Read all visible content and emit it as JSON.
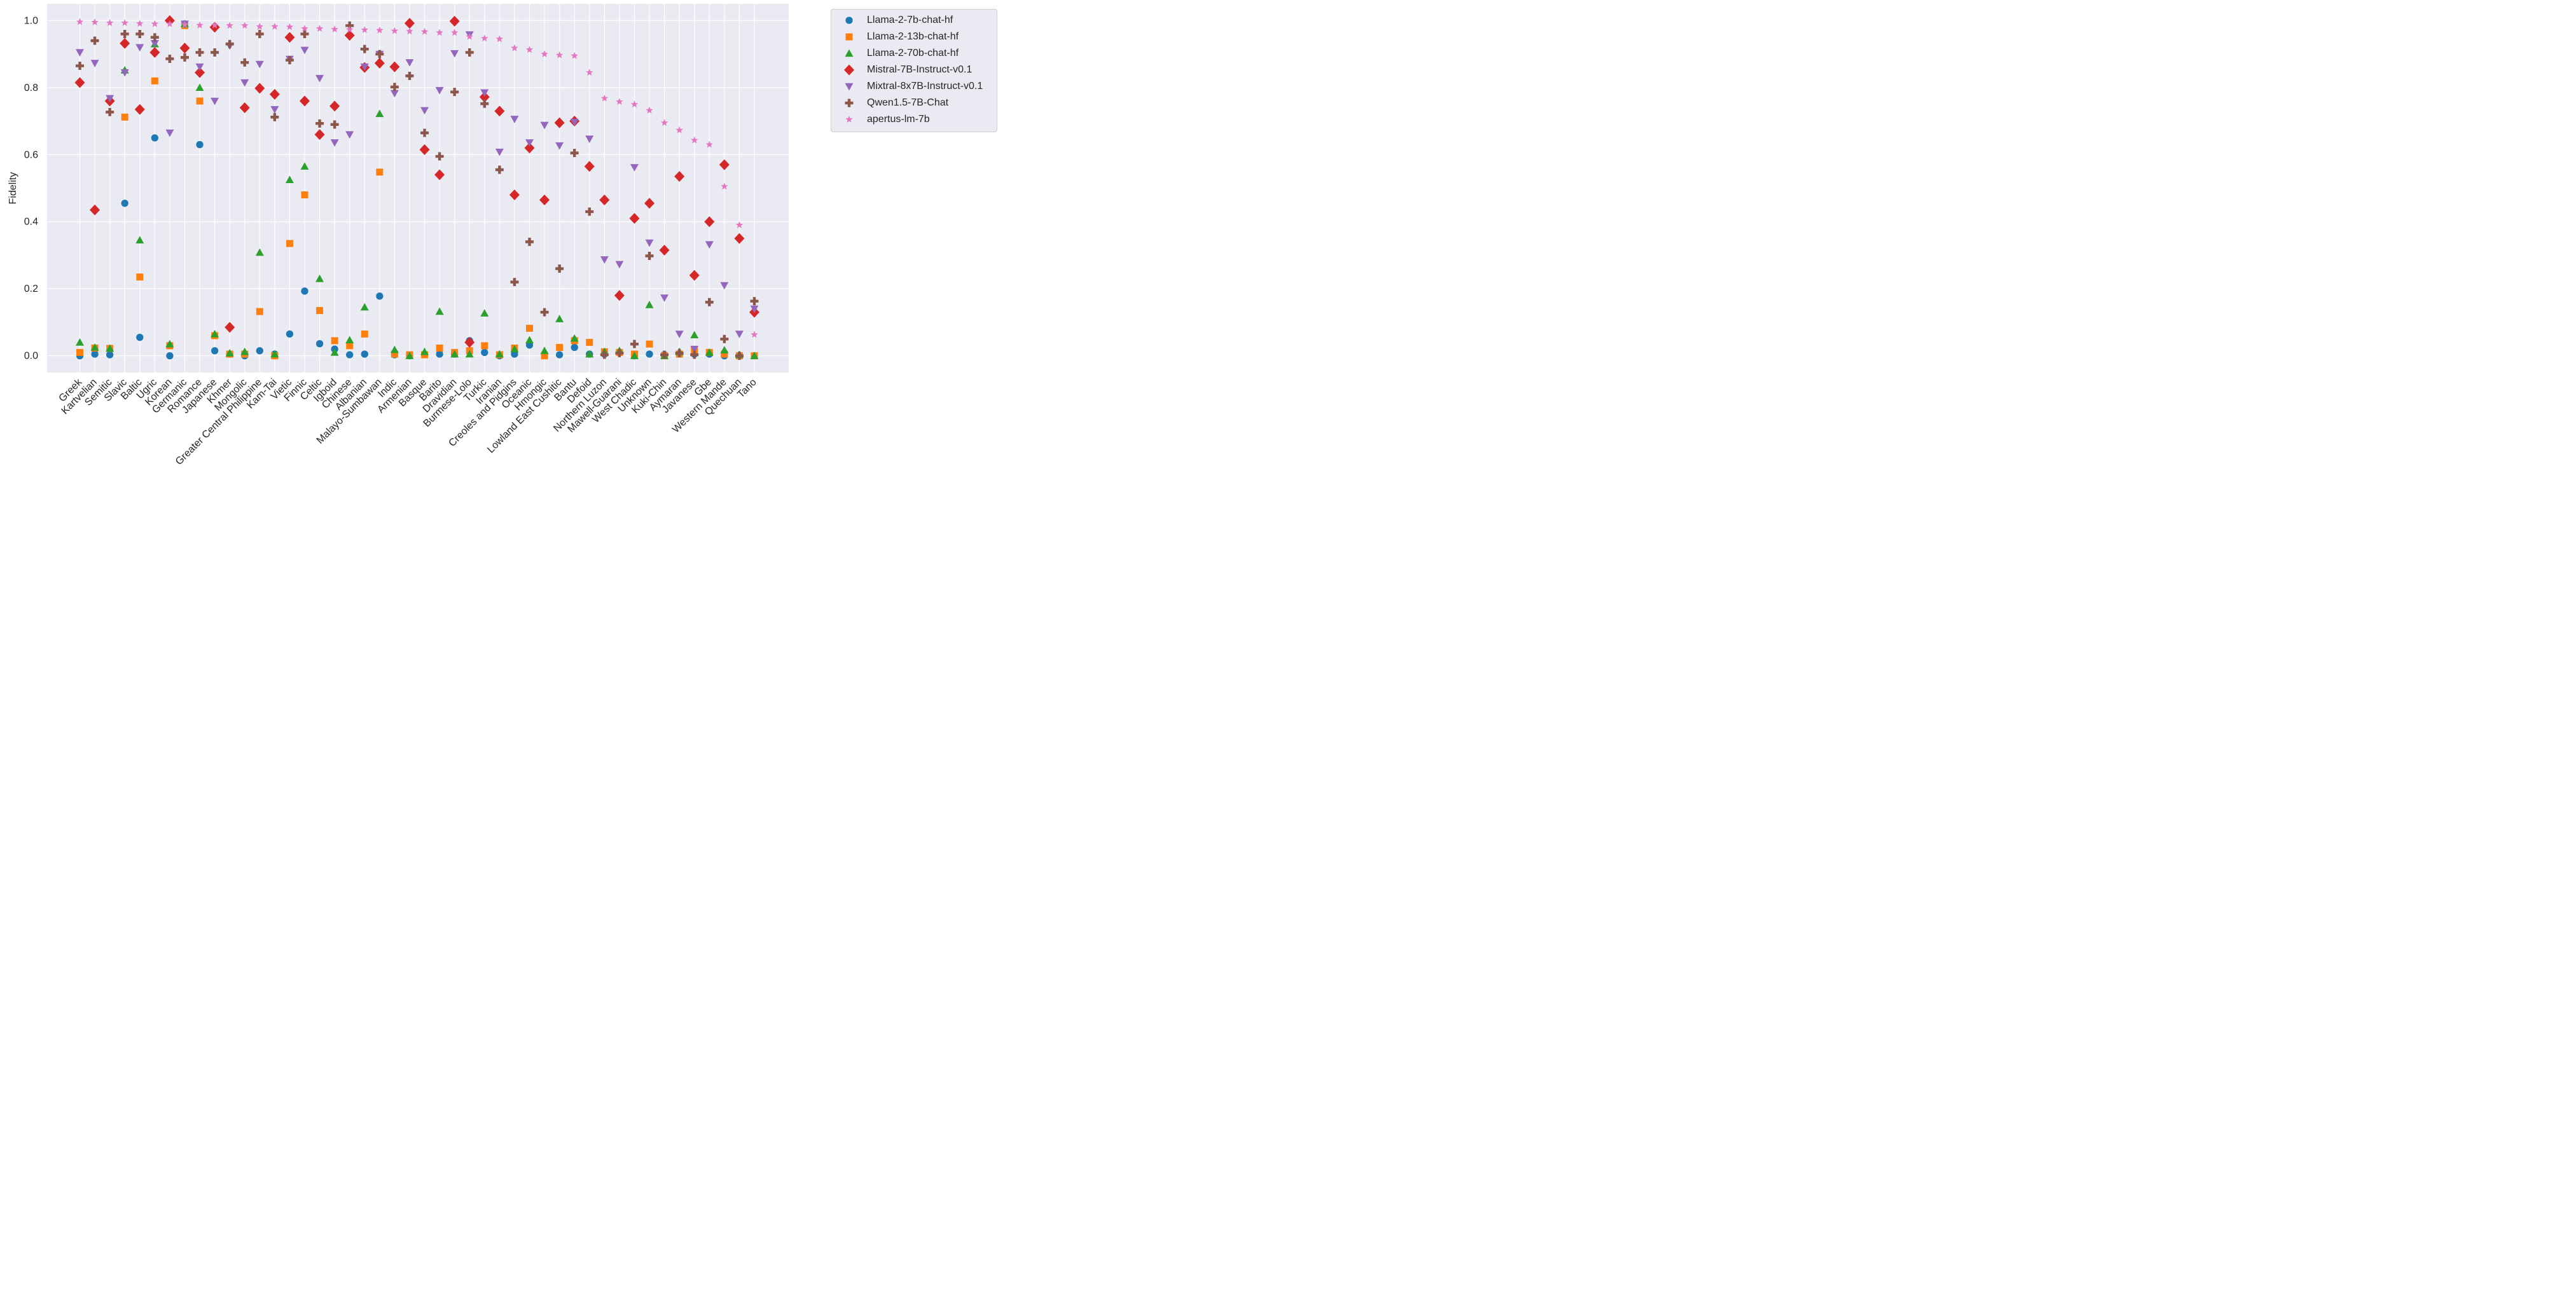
{
  "chart_data": {
    "type": "scatter",
    "title": "",
    "xlabel": "",
    "ylabel": "Fidelity",
    "ylim": [
      -0.05,
      1.05
    ],
    "yticks": [
      0.0,
      0.2,
      0.4,
      0.6,
      0.8,
      1.0
    ],
    "ytick_labels": [
      "0.0",
      "0.2",
      "0.4",
      "0.6",
      "0.8",
      "1.0"
    ],
    "grid": true,
    "legend_position": "outside-top-right",
    "categories": [
      "Greek",
      "Kartvelian",
      "Semitic",
      "Slavic",
      "Baltic",
      "Ugric",
      "Korean",
      "Germanic",
      "Romance",
      "Japanese",
      "Khmer",
      "Mongolic",
      "Greater Central Philippine",
      "Kam-Tai",
      "Vietic",
      "Finnic",
      "Celtic",
      "Igboid",
      "Chinese",
      "Albanian",
      "Malayo-Sumbawan",
      "Indic",
      "Armenian",
      "Basque",
      "Barito",
      "Dravidian",
      "Burmese-Lolo",
      "Turkic",
      "Iranian",
      "Creoles and Pidgins",
      "Oceanic",
      "Hmongic",
      "Lowland East Cushitic",
      "Bantu",
      "Defoid",
      "Northern Luzon",
      "Mawell-Guarani",
      "West Chadic",
      "Unknown",
      "Kuki-Chin",
      "Aymaran",
      "Javanese",
      "Gbe",
      "Western Mande",
      "Quechuan",
      "Tano"
    ],
    "series": [
      {
        "name": "Llama-2-7b-chat-hf",
        "color": "#1f77b4",
        "marker": "circle",
        "values": [
          0.0,
          0.005,
          0.003,
          0.455,
          0.055,
          0.65,
          0.0,
          0.99,
          0.63,
          0.015,
          0.005,
          0.0,
          0.015,
          0.005,
          0.065,
          0.193,
          0.036,
          0.02,
          0.003,
          0.005,
          0.178,
          0.003,
          0.0,
          0.003,
          0.005,
          0.005,
          0.045,
          0.01,
          0.0,
          0.005,
          0.032,
          0.005,
          0.003,
          0.025,
          0.005,
          0.005,
          0.01,
          0.0,
          0.005,
          0.003,
          0.005,
          0.005,
          0.005,
          0.0,
          0.0,
          0.0
        ]
      },
      {
        "name": "Llama-2-13b-chat-hf",
        "color": "#ff7f0e",
        "marker": "square",
        "values": [
          0.01,
          0.023,
          0.022,
          0.712,
          0.235,
          0.82,
          0.03,
          0.985,
          0.76,
          0.06,
          0.005,
          0.005,
          0.132,
          0.0,
          0.335,
          0.48,
          0.135,
          0.045,
          0.03,
          0.065,
          0.548,
          0.005,
          0.003,
          0.003,
          0.023,
          0.01,
          0.015,
          0.03,
          0.003,
          0.023,
          0.082,
          0.0,
          0.025,
          0.045,
          0.04,
          0.012,
          0.01,
          0.005,
          0.035,
          0.0,
          0.005,
          0.018,
          0.01,
          0.005,
          0.0,
          0.0
        ]
      },
      {
        "name": "Llama-2-70b-chat-hf",
        "color": "#2ca02c",
        "marker": "triangle-up",
        "values": [
          0.04,
          0.025,
          0.022,
          0.852,
          0.345,
          0.93,
          0.035,
          0.99,
          0.8,
          0.065,
          0.008,
          0.012,
          0.308,
          0.005,
          0.525,
          0.565,
          0.23,
          0.01,
          0.047,
          0.145,
          0.722,
          0.018,
          0.0,
          0.012,
          0.132,
          0.005,
          0.005,
          0.127,
          0.005,
          0.02,
          0.047,
          0.015,
          0.11,
          0.052,
          0.005,
          0.012,
          0.015,
          0.0,
          0.152,
          0.0,
          0.012,
          0.062,
          0.01,
          0.017,
          0.003,
          0.0
        ]
      },
      {
        "name": "Mistral-7B-Instruct-v0.1",
        "color": "#d62728",
        "marker": "diamond",
        "values": [
          0.815,
          0.435,
          0.76,
          0.932,
          0.735,
          0.905,
          1.0,
          0.918,
          0.845,
          0.98,
          0.085,
          0.74,
          0.798,
          0.78,
          0.95,
          0.76,
          0.66,
          0.745,
          0.956,
          0.86,
          0.873,
          0.862,
          0.992,
          0.615,
          0.54,
          0.998,
          0.04,
          0.772,
          0.73,
          0.48,
          0.62,
          0.465,
          0.695,
          0.7,
          0.565,
          0.465,
          0.18,
          0.41,
          0.455,
          0.315,
          0.535,
          0.24,
          0.4,
          0.57,
          0.35,
          0.13
        ]
      },
      {
        "name": "Mixtral-8x7B-Instruct-v0.1",
        "color": "#9467bd",
        "marker": "triangle-down",
        "values": [
          0.905,
          0.873,
          0.768,
          0.845,
          0.92,
          0.932,
          0.665,
          0.99,
          0.862,
          0.76,
          0.925,
          0.815,
          0.87,
          0.735,
          0.885,
          0.912,
          0.828,
          0.636,
          0.66,
          0.862,
          0.9,
          0.783,
          0.875,
          0.732,
          0.792,
          0.902,
          0.958,
          0.785,
          0.608,
          0.706,
          0.636,
          0.688,
          0.627,
          0.697,
          0.647,
          0.287,
          0.273,
          0.562,
          0.337,
          0.173,
          0.065,
          0.02,
          0.332,
          0.21,
          0.065,
          0.14
        ]
      },
      {
        "name": "Qwen1.5-7B-Chat",
        "color": "#8c564b",
        "marker": "plus",
        "values": [
          0.865,
          0.94,
          0.727,
          0.96,
          0.96,
          0.95,
          0.886,
          0.89,
          0.905,
          0.905,
          0.93,
          0.875,
          0.96,
          0.712,
          0.882,
          0.96,
          0.693,
          0.69,
          0.985,
          0.915,
          0.9,
          0.802,
          0.835,
          0.665,
          0.595,
          0.787,
          0.905,
          0.752,
          0.555,
          0.22,
          0.34,
          0.13,
          0.26,
          0.605,
          0.43,
          0.003,
          0.008,
          0.035,
          0.298,
          0.003,
          0.008,
          0.003,
          0.16,
          0.05,
          0.0,
          0.163
        ]
      },
      {
        "name": "apertus-lm-7b",
        "color": "#e377c2",
        "marker": "star",
        "values": [
          0.996,
          0.995,
          0.993,
          0.993,
          0.991,
          0.99,
          0.99,
          0.988,
          0.986,
          0.986,
          0.985,
          0.985,
          0.982,
          0.982,
          0.981,
          0.976,
          0.976,
          0.974,
          0.973,
          0.972,
          0.971,
          0.969,
          0.968,
          0.967,
          0.964,
          0.964,
          0.952,
          0.947,
          0.945,
          0.918,
          0.913,
          0.9,
          0.897,
          0.895,
          0.845,
          0.768,
          0.758,
          0.75,
          0.732,
          0.695,
          0.673,
          0.643,
          0.63,
          0.505,
          0.39,
          0.063
        ]
      }
    ]
  }
}
